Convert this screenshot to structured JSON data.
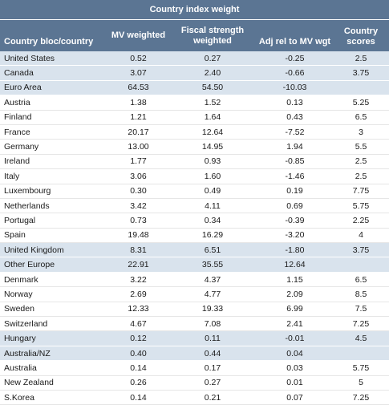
{
  "title": "Country index weight",
  "headers": {
    "country": "Country bloc/country",
    "mv": "MV weighted",
    "fiscal": "Fiscal strength weighted",
    "adj": "Adj rel to MV wgt",
    "scores": "Country scores"
  },
  "rows": [
    {
      "name": "United States",
      "mv": "0.52",
      "fiscal": "0.27",
      "adj": "-0.25",
      "score": "2.5",
      "group": true
    },
    {
      "name": "Canada",
      "mv": "3.07",
      "fiscal": "2.40",
      "adj": "-0.66",
      "score": "3.75",
      "group": true
    },
    {
      "name": "Euro Area",
      "mv": "64.53",
      "fiscal": "54.50",
      "adj": "-10.03",
      "score": "",
      "group": true
    },
    {
      "name": "Austria",
      "mv": "1.38",
      "fiscal": "1.52",
      "adj": "0.13",
      "score": "5.25",
      "group": false
    },
    {
      "name": "Finland",
      "mv": "1.21",
      "fiscal": "1.64",
      "adj": "0.43",
      "score": "6.5",
      "group": false
    },
    {
      "name": "France",
      "mv": "20.17",
      "fiscal": "12.64",
      "adj": "-7.52",
      "score": "3",
      "group": false
    },
    {
      "name": "Germany",
      "mv": "13.00",
      "fiscal": "14.95",
      "adj": "1.94",
      "score": "5.5",
      "group": false
    },
    {
      "name": "Ireland",
      "mv": "1.77",
      "fiscal": "0.93",
      "adj": "-0.85",
      "score": "2.5",
      "group": false
    },
    {
      "name": "Italy",
      "mv": "3.06",
      "fiscal": "1.60",
      "adj": "-1.46",
      "score": "2.5",
      "group": false
    },
    {
      "name": "Luxembourg",
      "mv": "0.30",
      "fiscal": "0.49",
      "adj": "0.19",
      "score": "7.75",
      "group": false
    },
    {
      "name": "Netherlands",
      "mv": "3.42",
      "fiscal": "4.11",
      "adj": "0.69",
      "score": "5.75",
      "group": false
    },
    {
      "name": "Portugal",
      "mv": "0.73",
      "fiscal": "0.34",
      "adj": "-0.39",
      "score": "2.25",
      "group": false
    },
    {
      "name": "Spain",
      "mv": "19.48",
      "fiscal": "16.29",
      "adj": "-3.20",
      "score": "4",
      "group": false
    },
    {
      "name": "United Kingdom",
      "mv": "8.31",
      "fiscal": "6.51",
      "adj": "-1.80",
      "score": "3.75",
      "group": true
    },
    {
      "name": "Other Europe",
      "mv": "22.91",
      "fiscal": "35.55",
      "adj": "12.64",
      "score": "",
      "group": true
    },
    {
      "name": "Denmark",
      "mv": "3.22",
      "fiscal": "4.37",
      "adj": "1.15",
      "score": "6.5",
      "group": false
    },
    {
      "name": "Norway",
      "mv": "2.69",
      "fiscal": "4.77",
      "adj": "2.09",
      "score": "8.5",
      "group": false
    },
    {
      "name": "Sweden",
      "mv": "12.33",
      "fiscal": "19.33",
      "adj": "6.99",
      "score": "7.5",
      "group": false
    },
    {
      "name": "Switzerland",
      "mv": "4.67",
      "fiscal": "7.08",
      "adj": "2.41",
      "score": "7.25",
      "group": false
    },
    {
      "name": "Hungary",
      "mv": "0.12",
      "fiscal": "0.11",
      "adj": "-0.01",
      "score": "4.5",
      "group": true
    },
    {
      "name": "Australia/NZ",
      "mv": "0.40",
      "fiscal": "0.44",
      "adj": "0.04",
      "score": "",
      "group": true
    },
    {
      "name": "Australia",
      "mv": "0.14",
      "fiscal": "0.17",
      "adj": "0.03",
      "score": "5.75",
      "group": false
    },
    {
      "name": "New Zealand",
      "mv": "0.26",
      "fiscal": "0.27",
      "adj": "0.01",
      "score": "5",
      "group": false
    },
    {
      "name": "S.Korea",
      "mv": "0.14",
      "fiscal": "0.21",
      "adj": "0.07",
      "score": "7.25",
      "group": false
    }
  ]
}
